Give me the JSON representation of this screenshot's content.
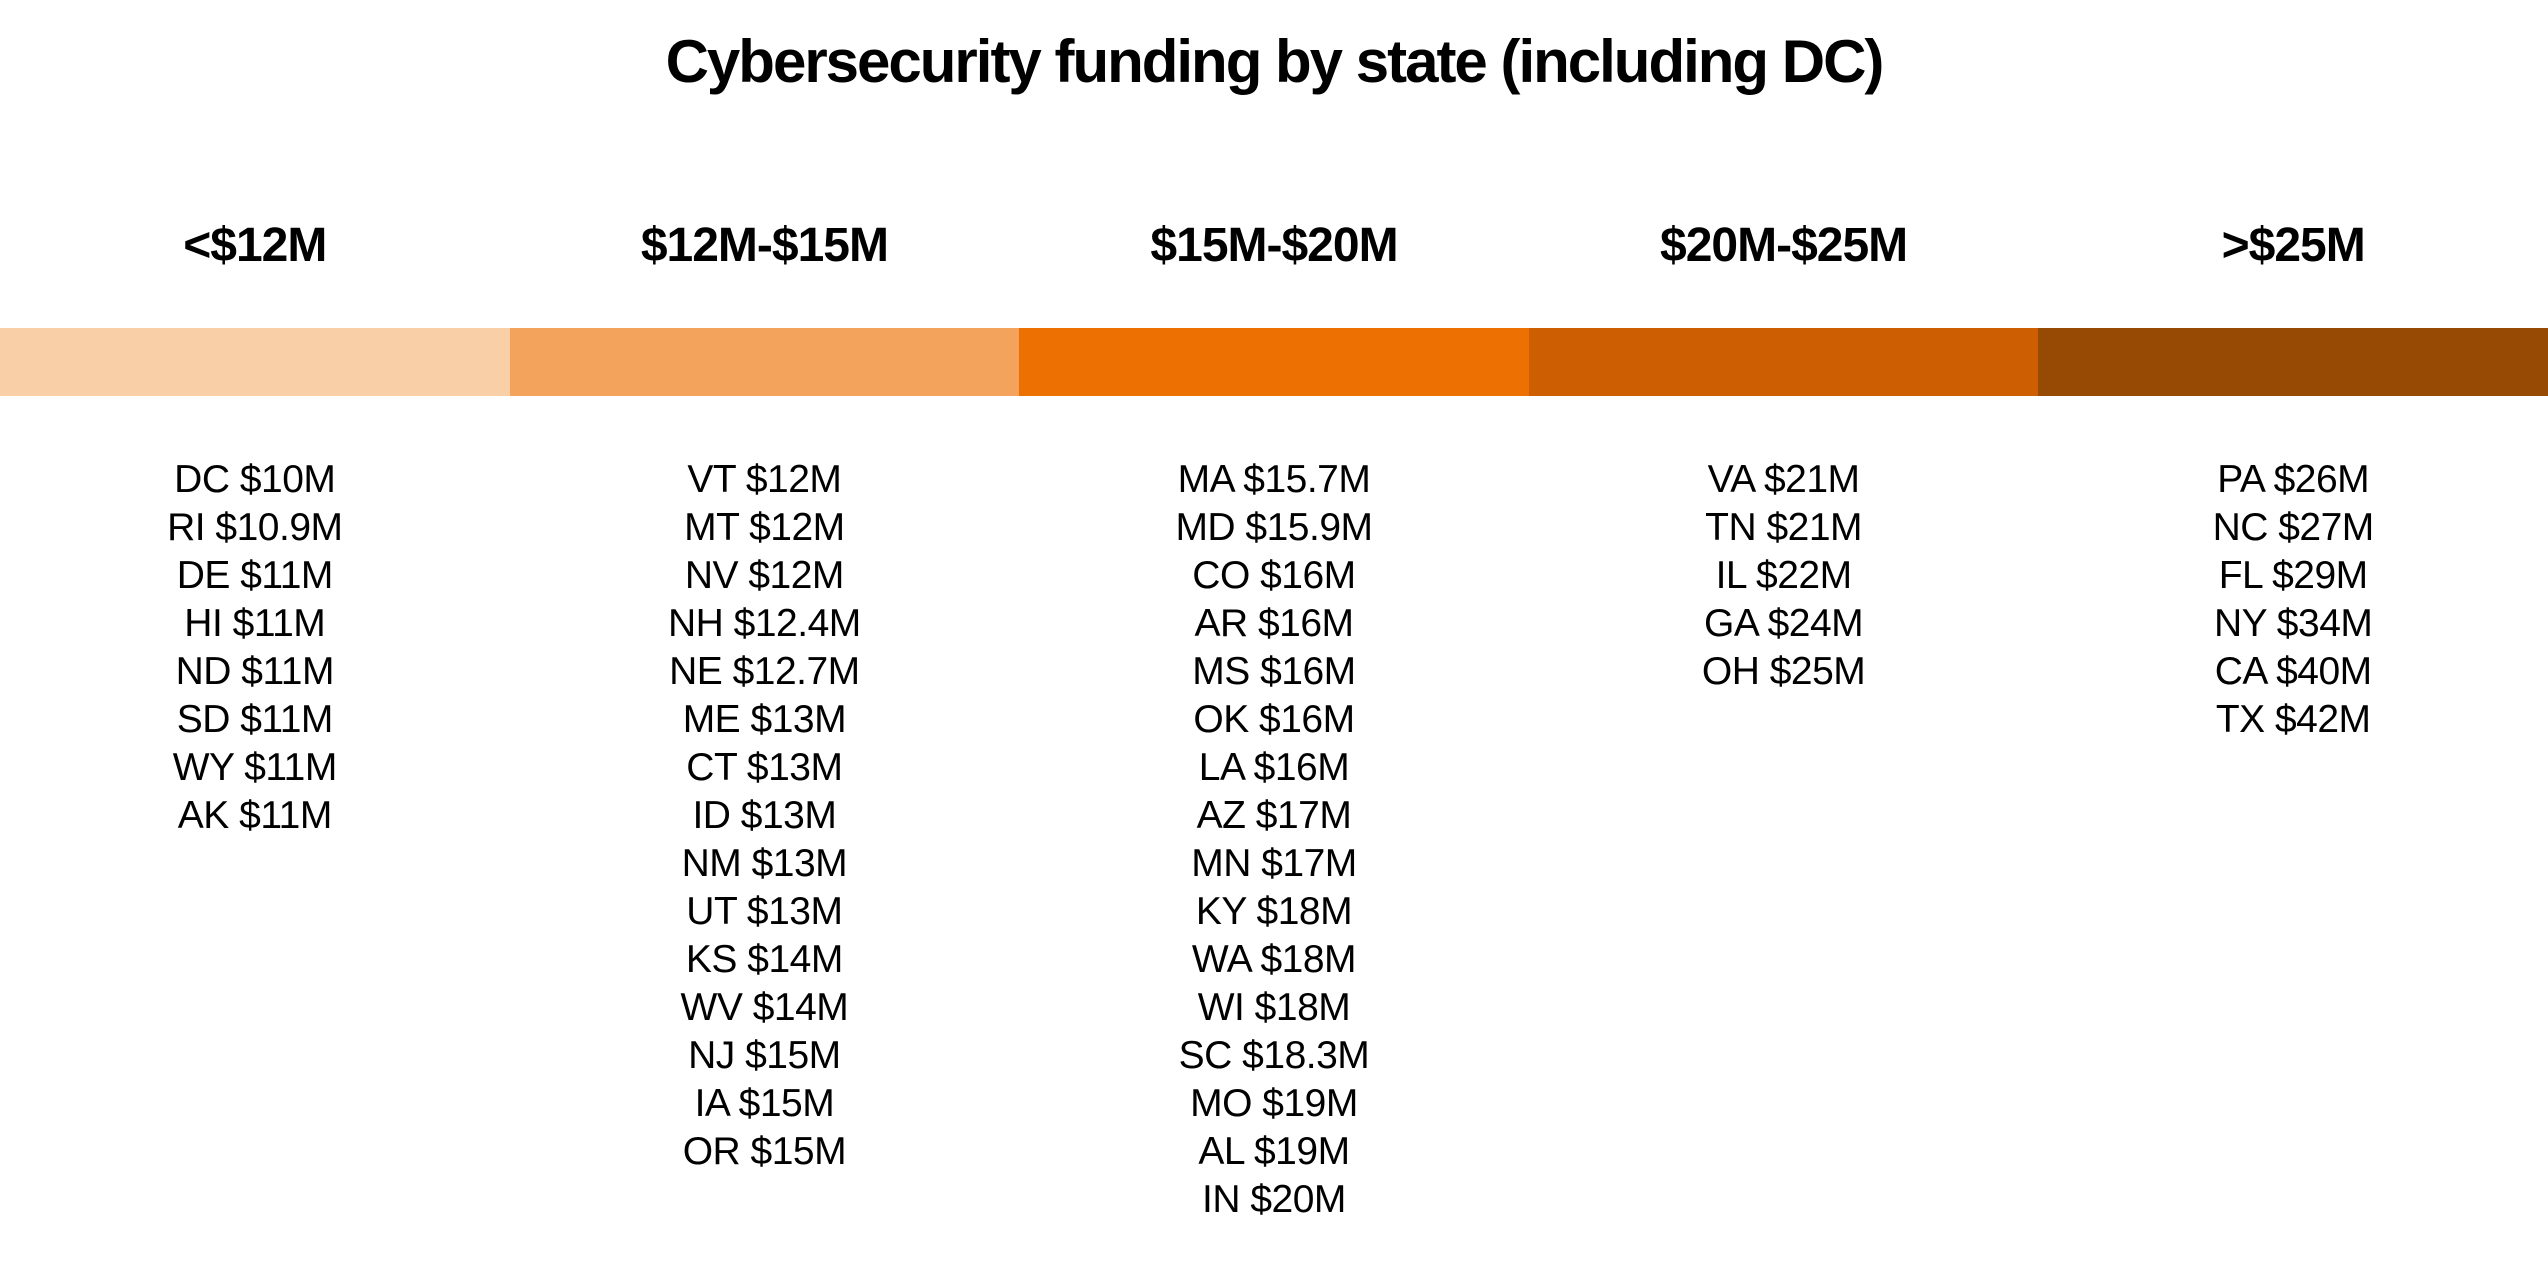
{
  "title": "Cybersecurity funding by state (including DC)",
  "chart_data": {
    "type": "table",
    "title": "Cybersecurity funding by state (including DC)",
    "unit": "$M",
    "bins": [
      {
        "label": "<$12M",
        "color": "#F9CFA8",
        "states": [
          {
            "state": "DC",
            "value": 10,
            "label": "DC $10M"
          },
          {
            "state": "RI",
            "value": 10.9,
            "label": "RI $10.9M"
          },
          {
            "state": "DE",
            "value": 11,
            "label": "DE $11M"
          },
          {
            "state": "HI",
            "value": 11,
            "label": "HI $11M"
          },
          {
            "state": "ND",
            "value": 11,
            "label": "ND $11M"
          },
          {
            "state": "SD",
            "value": 11,
            "label": "SD $11M"
          },
          {
            "state": "WY",
            "value": 11,
            "label": "WY $11M"
          },
          {
            "state": "AK",
            "value": 11,
            "label": "AK $11M"
          }
        ]
      },
      {
        "label": "$12M-$15M",
        "color": "#F3A35B",
        "states": [
          {
            "state": "VT",
            "value": 12,
            "label": "VT $12M"
          },
          {
            "state": "MT",
            "value": 12,
            "label": "MT $12M"
          },
          {
            "state": "NV",
            "value": 12,
            "label": "NV $12M"
          },
          {
            "state": "NH",
            "value": 12.4,
            "label": "NH $12.4M"
          },
          {
            "state": "NE",
            "value": 12.7,
            "label": "NE $12.7M"
          },
          {
            "state": "ME",
            "value": 13,
            "label": "ME $13M"
          },
          {
            "state": "CT",
            "value": 13,
            "label": "CT $13M"
          },
          {
            "state": "ID",
            "value": 13,
            "label": "ID $13M"
          },
          {
            "state": "NM",
            "value": 13,
            "label": "NM $13M"
          },
          {
            "state": "UT",
            "value": 13,
            "label": "UT $13M"
          },
          {
            "state": "KS",
            "value": 14,
            "label": "KS $14M"
          },
          {
            "state": "WV",
            "value": 14,
            "label": "WV $14M"
          },
          {
            "state": "NJ",
            "value": 15,
            "label": "NJ $15M"
          },
          {
            "state": "IA",
            "value": 15,
            "label": "IA $15M"
          },
          {
            "state": "OR",
            "value": 15,
            "label": "OR $15M"
          }
        ]
      },
      {
        "label": "$15M-$20M",
        "color": "#ED7003",
        "states": [
          {
            "state": "MA",
            "value": 15.7,
            "label": "MA $15.7M"
          },
          {
            "state": "MD",
            "value": 15.9,
            "label": "MD $15.9M"
          },
          {
            "state": "CO",
            "value": 16,
            "label": "CO $16M"
          },
          {
            "state": "AR",
            "value": 16,
            "label": "AR $16M"
          },
          {
            "state": "MS",
            "value": 16,
            "label": "MS $16M"
          },
          {
            "state": "OK",
            "value": 16,
            "label": "OK $16M"
          },
          {
            "state": "LA",
            "value": 16,
            "label": "LA $16M"
          },
          {
            "state": "AZ",
            "value": 17,
            "label": "AZ $17M"
          },
          {
            "state": "MN",
            "value": 17,
            "label": "MN $17M"
          },
          {
            "state": "KY",
            "value": 18,
            "label": "KY $18M"
          },
          {
            "state": "WA",
            "value": 18,
            "label": "WA $18M"
          },
          {
            "state": "WI",
            "value": 18,
            "label": "WI $18M"
          },
          {
            "state": "SC",
            "value": 18.3,
            "label": "SC $18.3M"
          },
          {
            "state": "MO",
            "value": 19,
            "label": "MO $19M"
          },
          {
            "state": "AL",
            "value": 19,
            "label": "AL $19M"
          },
          {
            "state": "IN",
            "value": 20,
            "label": "IN $20M"
          }
        ]
      },
      {
        "label": "$20M-$25M",
        "color": "#CD5F02",
        "states": [
          {
            "state": "VA",
            "value": 21,
            "label": "VA $21M"
          },
          {
            "state": "TN",
            "value": 21,
            "label": "TN $21M"
          },
          {
            "state": "IL",
            "value": 22,
            "label": "IL $22M"
          },
          {
            "state": "GA",
            "value": 24,
            "label": "GA $24M"
          },
          {
            "state": "OH",
            "value": 25,
            "label": "OH $25M"
          }
        ]
      },
      {
        "label": ">$25M",
        "color": "#974A04",
        "states": [
          {
            "state": "PA",
            "value": 26,
            "label": "PA $26M"
          },
          {
            "state": "NC",
            "value": 27,
            "label": "NC $27M"
          },
          {
            "state": "FL",
            "value": 29,
            "label": "FL $29M"
          },
          {
            "state": "NY",
            "value": 34,
            "label": "NY $34M"
          },
          {
            "state": "CA",
            "value": 40,
            "label": "CA $40M"
          },
          {
            "state": "TX",
            "value": 42,
            "label": "TX $42M"
          }
        ]
      }
    ]
  }
}
